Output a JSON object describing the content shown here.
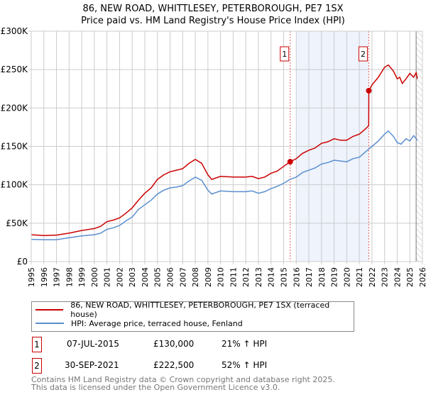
{
  "title_line1": "86, NEW ROAD, WHITTLESEY, PETERBOROUGH, PE7 1SX",
  "title_line2": "Price paid vs. HM Land Registry's House Price Index (HPI)",
  "chart_data": {
    "type": "line",
    "title": "86, NEW ROAD, WHITTLESEY, PETERBOROUGH, PE7 1SX — Price paid vs. HM Land Registry's House Price Index (HPI)",
    "xlim": [
      1995,
      2026
    ],
    "ylim": [
      0,
      300000
    ],
    "x_ticks": [
      "1995",
      "1996",
      "1997",
      "1998",
      "1999",
      "2000",
      "2001",
      "2002",
      "2003",
      "2004",
      "2005",
      "2006",
      "2007",
      "2008",
      "2009",
      "2010",
      "2011",
      "2012",
      "2013",
      "2014",
      "2015",
      "2016",
      "2017",
      "2018",
      "2019",
      "2020",
      "2021",
      "2022",
      "2023",
      "2024",
      "2025",
      "2026"
    ],
    "y_ticks": [
      {
        "v": 0,
        "label": "£0"
      },
      {
        "v": 50000,
        "label": "£50K"
      },
      {
        "v": 100000,
        "label": "£100K"
      },
      {
        "v": 150000,
        "label": "£150K"
      },
      {
        "v": 200000,
        "label": "£200K"
      },
      {
        "v": 250000,
        "label": "£250K"
      },
      {
        "v": 300000,
        "label": "£300K"
      }
    ],
    "grid": true,
    "shaded_range": [
      2016,
      2021.75
    ],
    "hatched_from": 2025.5,
    "colors": {
      "property": "#cc0000",
      "hpi": "#5b8fd0",
      "shade": "#eef3fc"
    },
    "series": [
      {
        "name": "86, NEW ROAD, WHITTLESEY, PETERBOROUGH, PE7 1SX (terraced house)",
        "key": "property",
        "x": [
          1995,
          1996,
          1997,
          1998,
          1999,
          2000,
          2000.5,
          2001,
          2001.5,
          2002,
          2002.5,
          2003,
          2003.5,
          2004,
          2004.5,
          2005,
          2005.5,
          2006,
          2006.5,
          2007,
          2007.5,
          2008,
          2008.5,
          2009,
          2009.3,
          2010,
          2011,
          2012,
          2012.5,
          2013,
          2013.5,
          2014,
          2014.5,
          2015,
          2015.52,
          2016,
          2016.5,
          2017,
          2017.5,
          2018,
          2018.5,
          2019,
          2019.5,
          2020,
          2020.5,
          2021,
          2021.5,
          2021.74,
          2021.75,
          2022,
          2022.5,
          2023,
          2023.3,
          2023.7,
          2024,
          2024.2,
          2024.4,
          2024.7,
          2025,
          2025.3,
          2025.5,
          2025.6
        ],
        "y": [
          35000,
          34000,
          34500,
          37000,
          40500,
          43000,
          46000,
          52000,
          54000,
          57000,
          63000,
          70000,
          80000,
          89000,
          96000,
          107000,
          113000,
          117000,
          119000,
          121000,
          128000,
          133000,
          128000,
          113000,
          107000,
          111000,
          110000,
          110000,
          111000,
          108000,
          110000,
          115000,
          118000,
          124000,
          130000,
          134000,
          141000,
          145000,
          148000,
          154000,
          156000,
          160000,
          158000,
          158000,
          163000,
          166000,
          173000,
          177000,
          222500,
          230000,
          240000,
          253000,
          256000,
          248000,
          238000,
          240000,
          232000,
          238000,
          245000,
          240000,
          246000,
          238000
        ]
      },
      {
        "name": "HPI: Average price, terraced house, Fenland",
        "key": "hpi",
        "x": [
          1995,
          1996,
          1997,
          1998,
          1999,
          2000,
          2000.5,
          2001,
          2001.5,
          2002,
          2002.5,
          2003,
          2003.5,
          2004,
          2004.5,
          2005,
          2005.5,
          2006,
          2006.5,
          2007,
          2007.5,
          2008,
          2008.5,
          2009,
          2009.3,
          2010,
          2011,
          2012,
          2012.5,
          2013,
          2013.5,
          2014,
          2014.5,
          2015,
          2015.5,
          2016,
          2016.5,
          2017,
          2017.5,
          2018,
          2018.5,
          2019,
          2019.5,
          2020,
          2020.5,
          2021,
          2021.5,
          2022,
          2022.5,
          2023,
          2023.3,
          2023.7,
          2024,
          2024.3,
          2024.7,
          2025,
          2025.3,
          2025.6
        ],
        "y": [
          29000,
          28500,
          28500,
          31000,
          33500,
          35000,
          37000,
          42000,
          44000,
          47000,
          53000,
          58000,
          68000,
          74000,
          80000,
          88000,
          93000,
          96000,
          97000,
          99000,
          105000,
          110000,
          106000,
          93000,
          88000,
          92000,
          91000,
          91000,
          92000,
          89000,
          91000,
          95000,
          98000,
          102000,
          107000,
          110000,
          116000,
          119000,
          122000,
          127000,
          129000,
          132000,
          131000,
          130000,
          134000,
          136000,
          143000,
          150000,
          157000,
          166000,
          170000,
          163000,
          155000,
          153000,
          160000,
          157000,
          164000,
          158000
        ]
      }
    ],
    "sales": [
      {
        "label": "1",
        "x": 2015.52,
        "y": 130000
      },
      {
        "label": "2",
        "x": 2021.75,
        "y": 222500
      }
    ]
  },
  "legend": {
    "property": "86, NEW ROAD, WHITTLESEY, PETERBOROUGH, PE7 1SX (terraced house)",
    "hpi": "HPI: Average price, terraced house, Fenland"
  },
  "transactions": [
    {
      "num": "1",
      "date": "07-JUL-2015",
      "price": "£130,000",
      "hpi": "21% ↑ HPI"
    },
    {
      "num": "2",
      "date": "30-SEP-2021",
      "price": "£222,500",
      "hpi": "52% ↑ HPI"
    }
  ],
  "footer": {
    "line1": "Contains HM Land Registry data © Crown copyright and database right 2025.",
    "line2": "This data is licensed under the Open Government Licence v3.0."
  }
}
